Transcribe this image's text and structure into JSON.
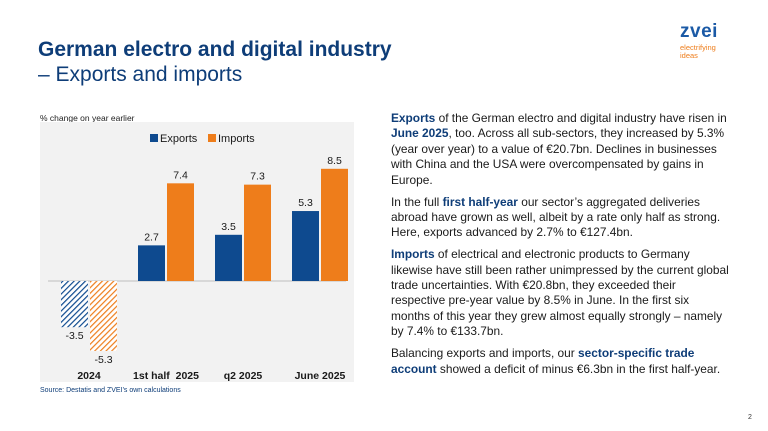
{
  "title": {
    "line1": "German electro and digital industry",
    "line2": "– Exports and imports"
  },
  "logo": {
    "word": "zvei",
    "tagline1": "electrifying",
    "tagline2": "ideas"
  },
  "colors": {
    "exports": "#0e4a8f",
    "imports": "#ee7d1b",
    "title": "#0e3d78",
    "panel": "#f2f2f2"
  },
  "chart_data": {
    "type": "bar",
    "unit_label": "% change on year earlier",
    "categories": [
      "2024",
      "1st half  2025",
      "q2 2025",
      "June 2025"
    ],
    "series": [
      {
        "name": "Exports",
        "values": [
          -3.5,
          2.7,
          3.5,
          5.3
        ],
        "labels": [
          "-3.5",
          "2.7",
          "3.5",
          "5.3"
        ]
      },
      {
        "name": "Imports",
        "values": [
          -5.3,
          7.4,
          7.3,
          8.5
        ],
        "labels": [
          "-5.3",
          "7.4",
          "7.3",
          "8.5"
        ]
      }
    ],
    "hatched_categories": [
      "2024"
    ],
    "legend": "top",
    "grid": false,
    "ylim": [
      -6.5,
      10
    ]
  },
  "source": "Source: Destatis and ZVEI’s own calculations",
  "paragraphs": [
    [
      {
        "t": "Exports",
        "b": true
      },
      {
        "t": " of the German electro and digital industry have risen in ",
        "b": false
      },
      {
        "t": "June 2025",
        "b": true
      },
      {
        "t": ", too. Across all sub-sectors, they increased by 5.3% (year over year) to a value of €20.7bn. Declines in businesses with China and the USA were overcompensated by gains in Europe.",
        "b": false
      }
    ],
    [
      {
        "t": "In the full ",
        "b": false
      },
      {
        "t": "first half-year",
        "b": true
      },
      {
        "t": " our sector’s aggregated deliveries abroad have grown as well, albeit by a rate only half as strong. Here, exports advanced by 2.7% to €127.4bn.",
        "b": false
      }
    ],
    [
      {
        "t": "Imports",
        "b": true
      },
      {
        "t": " of electrical and electronic products to Germany likewise have still been rather unimpressed by the current global trade uncertainties. With €20.8bn, they exceeded their respective pre-year value by 8.5% in June. In the first six months of this year they grew almost equally strongly – namely by 7.4% to €133.7bn.",
        "b": false
      }
    ],
    [
      {
        "t": "Balancing exports and imports, our ",
        "b": false
      },
      {
        "t": "sector-specific trade account",
        "b": true
      },
      {
        "t": " showed a deficit of minus €6.3bn in the first half-year.",
        "b": false
      }
    ]
  ],
  "page_number": "2"
}
